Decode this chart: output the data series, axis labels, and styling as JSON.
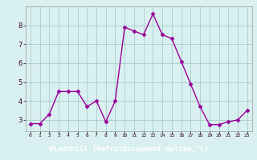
{
  "x": [
    0,
    1,
    2,
    3,
    4,
    5,
    6,
    7,
    8,
    9,
    10,
    11,
    12,
    13,
    14,
    15,
    16,
    17,
    18,
    19,
    20,
    21,
    22,
    23
  ],
  "y": [
    2.8,
    2.8,
    3.3,
    4.5,
    4.5,
    4.5,
    3.7,
    4.0,
    2.9,
    4.0,
    7.9,
    7.7,
    7.5,
    8.6,
    7.5,
    7.3,
    6.1,
    4.9,
    3.7,
    2.75,
    2.75,
    2.9,
    3.0,
    3.5
  ],
  "line_color": "#990099",
  "marker": "D",
  "marker_size": 2.5,
  "bg_color": "#d9f0f0",
  "grid_color": "#aacccc",
  "xlabel": "Windchill (Refroidissement éolien,°C)",
  "xlabel_color": "#ffffff",
  "xlabel_bg": "#660066",
  "ylabel_ticks": [
    3,
    4,
    5,
    6,
    7,
    8
  ],
  "xtick_labels": [
    "0",
    "1",
    "2",
    "3",
    "4",
    "5",
    "6",
    "7",
    "8",
    "9",
    "10",
    "11",
    "12",
    "13",
    "14",
    "15",
    "16",
    "17",
    "18",
    "19",
    "20",
    "21",
    "22",
    "23"
  ],
  "ylim": [
    2.4,
    9.0
  ],
  "xlim": [
    -0.5,
    23.5
  ],
  "fig_width": 3.2,
  "fig_height": 2.0,
  "dpi": 100
}
